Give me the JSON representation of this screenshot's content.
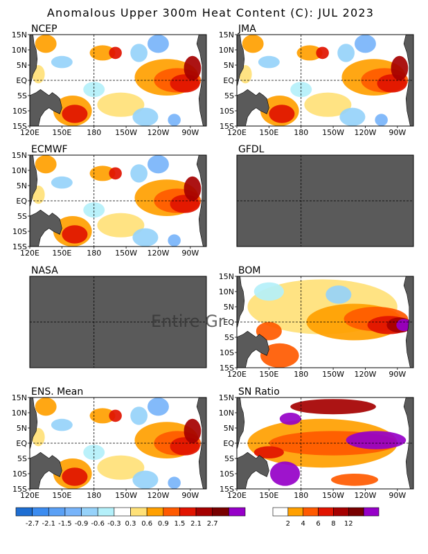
{
  "title": "Anomalous Upper 300m Heat Content (C): JUL 2023",
  "chart_data": {
    "type": "heatmap",
    "title": "Anomalous Upper 300m Heat Content (C): JUL 2023",
    "lat_ticks": [
      "15N",
      "10N",
      "5N",
      "EQ",
      "5S",
      "10S",
      "15S"
    ],
    "lon_ticks": [
      "120E",
      "150E",
      "180",
      "150W",
      "120W",
      "90W"
    ],
    "lat_range": [
      -15,
      15
    ],
    "lon_range": [
      120,
      285
    ],
    "panels": [
      {
        "name": "NCEP",
        "status": "data",
        "show_lon_ticks": true
      },
      {
        "name": "JMA",
        "status": "data",
        "show_lon_ticks": true
      },
      {
        "name": "ECMWF",
        "status": "data",
        "show_lon_ticks": true
      },
      {
        "name": "GFDL",
        "status": "missing",
        "show_lon_ticks": false
      },
      {
        "name": "NASA",
        "status": "missing",
        "show_lon_ticks": false
      },
      {
        "name": "BOM",
        "status": "data",
        "show_lon_ticks": true
      },
      {
        "name": "ENS. Mean",
        "status": "data",
        "show_lon_ticks": true
      },
      {
        "name": "SN Ratio",
        "status": "data",
        "show_lon_ticks": true
      }
    ],
    "overlay_text": "Entire Gr",
    "anomaly_colorbar": {
      "labels": [
        "-2.7",
        "-2.1",
        "-1.5",
        "-0.9",
        "-0.6",
        "-0.3",
        "0.3",
        "0.6",
        "0.9",
        "1.5",
        "2.1",
        "2.7"
      ],
      "colors": [
        "#1e6ed2",
        "#3c8cf0",
        "#5aa0f5",
        "#78b4fa",
        "#96d2fa",
        "#b4f0fa",
        "#ffffff",
        "#ffe178",
        "#ffa000",
        "#ff5a00",
        "#e11400",
        "#a50000",
        "#780000",
        "#9600c8"
      ]
    },
    "snratio_colorbar": {
      "labels": [
        "2",
        "4",
        "6",
        "8",
        "12"
      ],
      "colors": [
        "#ffffff",
        "#ffa000",
        "#ff5a00",
        "#e11400",
        "#a50000",
        "#780000",
        "#9600c8"
      ]
    },
    "land_color": "#5a5a5a",
    "missing_color": "#5a5a5a"
  }
}
